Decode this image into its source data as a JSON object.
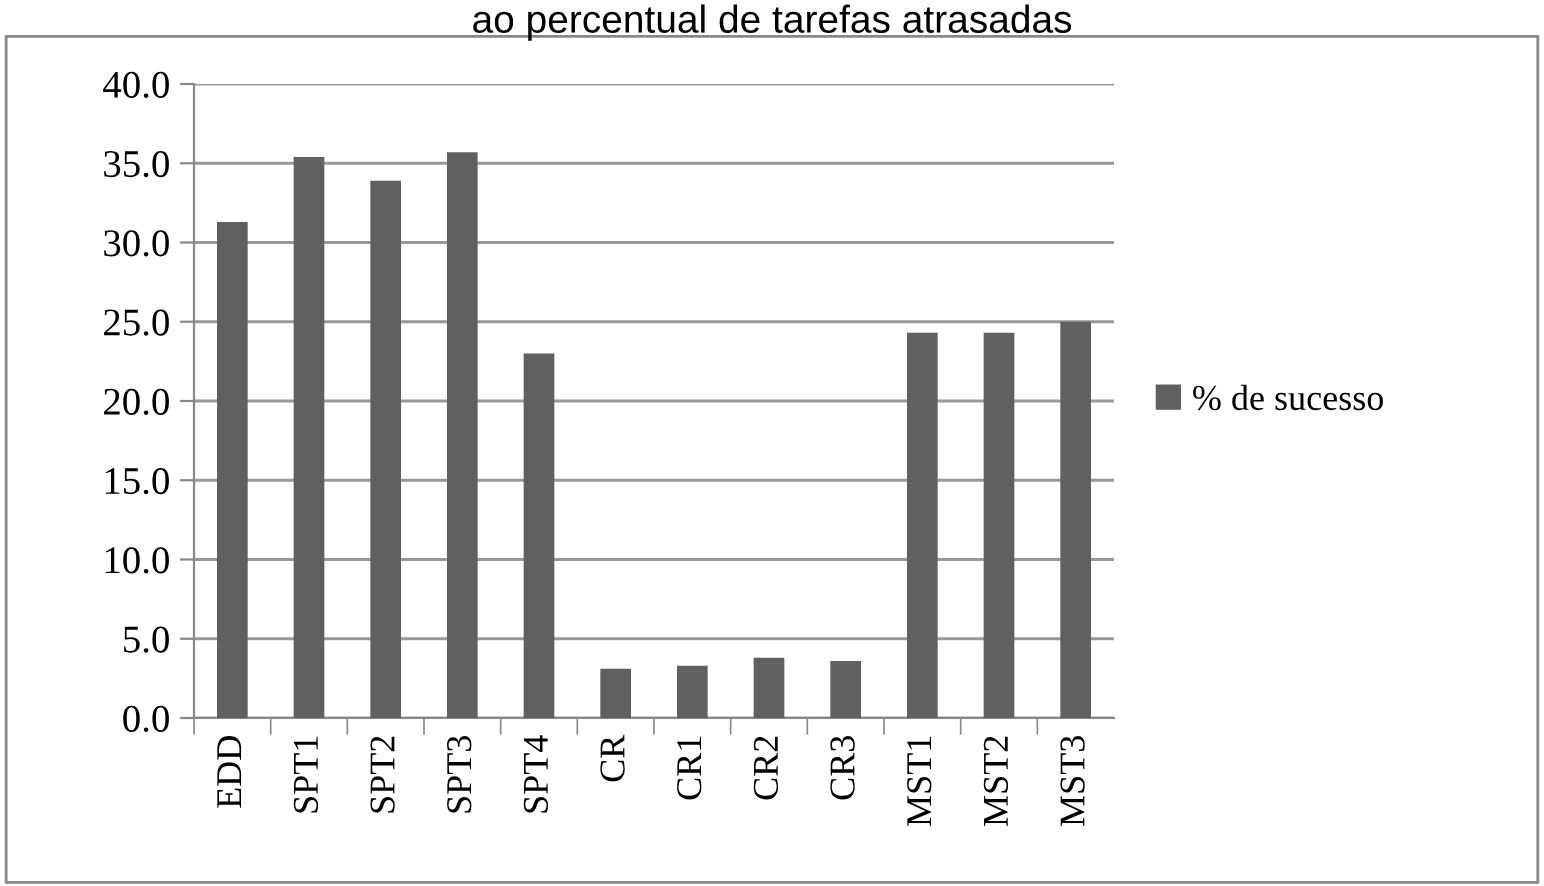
{
  "chart_data": {
    "type": "bar",
    "title": "ao percentual de tarefas atrasadas",
    "categories": [
      "EDD",
      "SPT1",
      "SPT2",
      "SPT3",
      "SPT4",
      "CR",
      "CR1",
      "CR2",
      "CR3",
      "MST1",
      "MST2",
      "MST3"
    ],
    "series": [
      {
        "name": "% de sucesso",
        "color": "#606060",
        "values": [
          31.3,
          35.4,
          33.9,
          35.7,
          23.0,
          3.1,
          3.3,
          3.8,
          3.6,
          24.3,
          24.3,
          25.0
        ]
      }
    ],
    "ylim": [
      0,
      40
    ],
    "yticks": [
      {
        "value": 0,
        "label": "0.0"
      },
      {
        "value": 5,
        "label": "5.0"
      },
      {
        "value": 10,
        "label": "10.0"
      },
      {
        "value": 15,
        "label": "15.0"
      },
      {
        "value": 20,
        "label": "20.0"
      },
      {
        "value": 25,
        "label": "25.0"
      },
      {
        "value": 30,
        "label": "30.0"
      },
      {
        "value": 35,
        "label": "35.0"
      },
      {
        "value": 40,
        "label": "40.0"
      }
    ],
    "grid": "y",
    "legend": "right"
  }
}
